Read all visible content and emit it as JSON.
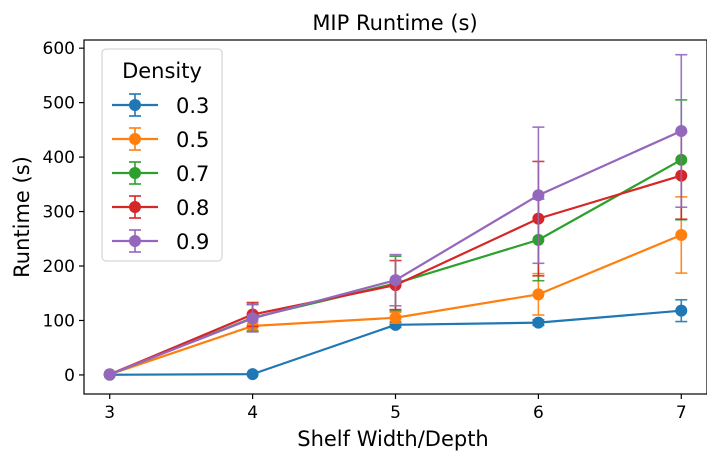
{
  "chart_data": {
    "type": "line",
    "title": "MIP Runtime (s)",
    "xlabel": "Shelf Width/Depth",
    "ylabel": "Runtime (s)",
    "x": [
      3,
      4,
      5,
      6,
      7
    ],
    "xticks": [
      "3",
      "4",
      "5",
      "6",
      "7"
    ],
    "yticks": [
      "0",
      "100",
      "200",
      "300",
      "400",
      "500",
      "600"
    ],
    "xlim": [
      2.82,
      7.18
    ],
    "ylim": [
      -35,
      615
    ],
    "grid": false,
    "legend": {
      "title": "Density",
      "placement": "upper-left"
    },
    "series": [
      {
        "name": "0.3",
        "color": "#1f77b4",
        "values": [
          0.3,
          1.5,
          92,
          96,
          118
        ],
        "errors": [
          0.5,
          0.5,
          5,
          5,
          20
        ]
      },
      {
        "name": "0.5",
        "color": "#ff7f0e",
        "values": [
          1,
          90,
          105,
          148,
          257
        ],
        "errors": [
          1,
          8,
          10,
          38,
          70
        ]
      },
      {
        "name": "0.7",
        "color": "#2ca02c",
        "values": [
          1,
          105,
          168,
          248,
          395
        ],
        "errors": [
          1,
          25,
          50,
          75,
          110
        ]
      },
      {
        "name": "0.8",
        "color": "#d62728",
        "values": [
          1,
          111,
          165,
          287,
          366
        ],
        "errors": [
          1,
          22,
          45,
          105,
          80
        ]
      },
      {
        "name": "0.9",
        "color": "#9467bd",
        "values": [
          1,
          104,
          174,
          330,
          448
        ],
        "errors": [
          1,
          25,
          47,
          125,
          140
        ]
      }
    ]
  }
}
